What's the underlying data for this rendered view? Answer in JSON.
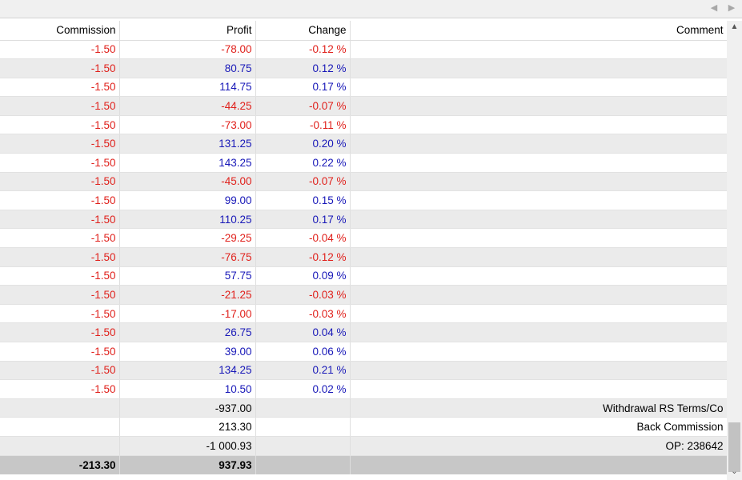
{
  "hscroll": {
    "left_icon": "chevron-left-icon",
    "right_icon": "chevron-right-icon"
  },
  "columns": {
    "commission": "Commission",
    "profit": "Profit",
    "change": "Change",
    "comment": "Comment"
  },
  "rows": [
    {
      "commission": "-1.50",
      "profit": "-78.00",
      "change": "-0.12 %",
      "sign": "neg",
      "comment": ""
    },
    {
      "commission": "-1.50",
      "profit": "80.75",
      "change": "0.12 %",
      "sign": "pos",
      "comment": ""
    },
    {
      "commission": "-1.50",
      "profit": "114.75",
      "change": "0.17 %",
      "sign": "pos",
      "comment": ""
    },
    {
      "commission": "-1.50",
      "profit": "-44.25",
      "change": "-0.07 %",
      "sign": "neg",
      "comment": ""
    },
    {
      "commission": "-1.50",
      "profit": "-73.00",
      "change": "-0.11 %",
      "sign": "neg",
      "comment": ""
    },
    {
      "commission": "-1.50",
      "profit": "131.25",
      "change": "0.20 %",
      "sign": "pos",
      "comment": ""
    },
    {
      "commission": "-1.50",
      "profit": "143.25",
      "change": "0.22 %",
      "sign": "pos",
      "comment": ""
    },
    {
      "commission": "-1.50",
      "profit": "-45.00",
      "change": "-0.07 %",
      "sign": "neg",
      "comment": ""
    },
    {
      "commission": "-1.50",
      "profit": "99.00",
      "change": "0.15 %",
      "sign": "pos",
      "comment": ""
    },
    {
      "commission": "-1.50",
      "profit": "110.25",
      "change": "0.17 %",
      "sign": "pos",
      "comment": ""
    },
    {
      "commission": "-1.50",
      "profit": "-29.25",
      "change": "-0.04 %",
      "sign": "neg",
      "comment": ""
    },
    {
      "commission": "-1.50",
      "profit": "-76.75",
      "change": "-0.12 %",
      "sign": "neg",
      "comment": ""
    },
    {
      "commission": "-1.50",
      "profit": "57.75",
      "change": "0.09 %",
      "sign": "pos",
      "comment": ""
    },
    {
      "commission": "-1.50",
      "profit": "-21.25",
      "change": "-0.03 %",
      "sign": "neg",
      "comment": ""
    },
    {
      "commission": "-1.50",
      "profit": "-17.00",
      "change": "-0.03 %",
      "sign": "neg",
      "comment": ""
    },
    {
      "commission": "-1.50",
      "profit": "26.75",
      "change": "0.04 %",
      "sign": "pos",
      "comment": ""
    },
    {
      "commission": "-1.50",
      "profit": "39.00",
      "change": "0.06 %",
      "sign": "pos",
      "comment": ""
    },
    {
      "commission": "-1.50",
      "profit": "134.25",
      "change": "0.21 %",
      "sign": "pos",
      "comment": ""
    },
    {
      "commission": "-1.50",
      "profit": "10.50",
      "change": "0.02 %",
      "sign": "pos",
      "comment": ""
    },
    {
      "commission": "",
      "profit": "-937.00",
      "change": "",
      "sign": "blk",
      "comment": "Withdrawal RS Terms/Co"
    },
    {
      "commission": "",
      "profit": "213.30",
      "change": "",
      "sign": "blk",
      "comment": "Back Commission"
    },
    {
      "commission": "",
      "profit": "-1 000.93",
      "change": "",
      "sign": "blk",
      "comment": "OP: 238642"
    }
  ],
  "totals": {
    "commission": "-213.30",
    "profit": "937.93"
  },
  "colors": {
    "negative": "#e0201b",
    "positive": "#1818b8",
    "row_alt": "#ebebeb",
    "total_row": "#c7c7c7"
  }
}
